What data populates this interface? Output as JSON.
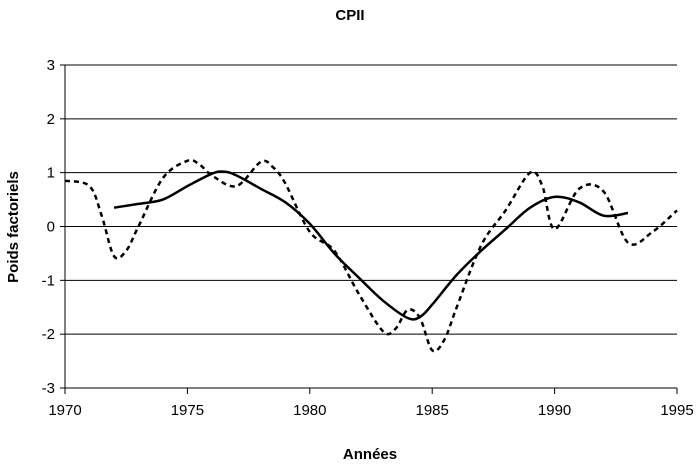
{
  "chart_data": {
    "type": "line",
    "title": "CPII",
    "xlabel": "Années",
    "ylabel": "Poids factoriels",
    "xlim": [
      1970,
      1995
    ],
    "ylim": [
      -3,
      3
    ],
    "x_ticks": [
      1970,
      1975,
      1980,
      1985,
      1990,
      1995
    ],
    "y_ticks": [
      3,
      2,
      1,
      0,
      -1,
      -2,
      -3
    ],
    "grid": "horizontal",
    "legend": "none",
    "series": [
      {
        "style": "solid",
        "color": "#000000",
        "x": [
          1972,
          1973,
          1974,
          1975,
          1976,
          1976.5,
          1977,
          1978,
          1979,
          1980,
          1981,
          1982,
          1983,
          1984,
          1984.5,
          1985,
          1986,
          1987,
          1988,
          1989,
          1990,
          1991,
          1992,
          1993
        ],
        "y": [
          0.35,
          0.42,
          0.5,
          0.75,
          0.98,
          1.02,
          0.95,
          0.7,
          0.45,
          0.05,
          -0.5,
          -0.95,
          -1.38,
          -1.7,
          -1.68,
          -1.45,
          -0.9,
          -0.45,
          -0.05,
          0.35,
          0.55,
          0.45,
          0.2,
          0.25
        ]
      },
      {
        "style": "dashed",
        "color": "#000000",
        "x": [
          1970,
          1971,
          1971.5,
          1972,
          1972.5,
          1973,
          1974,
          1975,
          1975.5,
          1976,
          1977,
          1978,
          1978.5,
          1979,
          1980,
          1981,
          1982,
          1983,
          1983.5,
          1984,
          1984.5,
          1985,
          1985.5,
          1986,
          1987,
          1988,
          1989,
          1989.5,
          1990,
          1991,
          1992,
          1993,
          1994,
          1995
        ],
        "y": [
          0.85,
          0.75,
          0.2,
          -0.55,
          -0.45,
          0.0,
          0.9,
          1.22,
          1.15,
          0.95,
          0.75,
          1.2,
          1.1,
          0.8,
          -0.1,
          -0.45,
          -1.25,
          -1.95,
          -1.9,
          -1.55,
          -1.7,
          -2.3,
          -2.1,
          -1.5,
          -0.35,
          0.3,
          1.0,
          0.75,
          -0.05,
          0.7,
          0.65,
          -0.3,
          -0.1,
          0.3
        ]
      }
    ]
  }
}
